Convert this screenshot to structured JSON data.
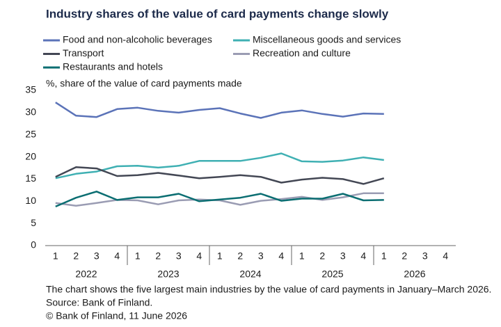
{
  "chart_data": {
    "type": "line",
    "title": "Industry shares of the value of card payments change slowly",
    "y_label": "%, share of the value of card payments made",
    "categories": [
      "1",
      "2",
      "3",
      "4",
      "1",
      "2",
      "3",
      "4",
      "1",
      "2",
      "3",
      "4",
      "1",
      "2",
      "3",
      "4",
      "1",
      "2",
      "3",
      "4"
    ],
    "groups": [
      "2022",
      "2023",
      "2024",
      "2025",
      "2026"
    ],
    "series": [
      {
        "name": "Food and non-alcoholic beverages",
        "color": "#5b73b8",
        "values": [
          32.3,
          29.3,
          29.0,
          30.8,
          31.1,
          30.4,
          30.0,
          30.6,
          31.0,
          29.8,
          28.8,
          30.0,
          30.5,
          29.7,
          29.1,
          29.8,
          29.7,
          null,
          null,
          null
        ]
      },
      {
        "name": "Miscellaneous goods and services",
        "color": "#3fb0b3",
        "values": [
          15.2,
          16.2,
          16.7,
          17.9,
          18.0,
          17.6,
          18.0,
          19.1,
          19.1,
          19.1,
          19.8,
          20.8,
          19.0,
          18.9,
          19.2,
          19.9,
          19.3,
          null,
          null,
          null
        ]
      },
      {
        "name": "Transport",
        "color": "#434754",
        "values": [
          15.5,
          17.7,
          17.4,
          15.7,
          15.9,
          16.4,
          15.8,
          15.2,
          15.5,
          15.9,
          15.5,
          14.2,
          14.9,
          15.3,
          15.0,
          13.9,
          15.2,
          null,
          null,
          null
        ]
      },
      {
        "name": "Recreation and culture",
        "color": "#9a9cb3",
        "values": [
          9.6,
          9.0,
          9.6,
          10.3,
          10.2,
          9.3,
          10.2,
          10.4,
          10.2,
          9.2,
          10.1,
          10.5,
          11.0,
          10.3,
          10.9,
          11.8,
          11.8,
          null,
          null,
          null
        ]
      },
      {
        "name": "Restaurants and hotels",
        "color": "#0b6e72",
        "values": [
          8.8,
          10.8,
          12.2,
          10.3,
          10.9,
          10.9,
          11.7,
          10.0,
          10.4,
          10.8,
          11.7,
          10.1,
          10.6,
          10.6,
          11.7,
          10.2,
          10.3,
          null,
          null,
          null
        ]
      }
    ],
    "ylim": [
      0,
      35
    ],
    "yticks": [
      0,
      5,
      10,
      15,
      20,
      25,
      30,
      35
    ],
    "grid": false,
    "notes": [
      "The chart shows the five largest main industries by the value of card payments in January–March 2026.",
      "Source: Bank of Finland.",
      "© Bank of Finland, 11 June 2026"
    ]
  }
}
